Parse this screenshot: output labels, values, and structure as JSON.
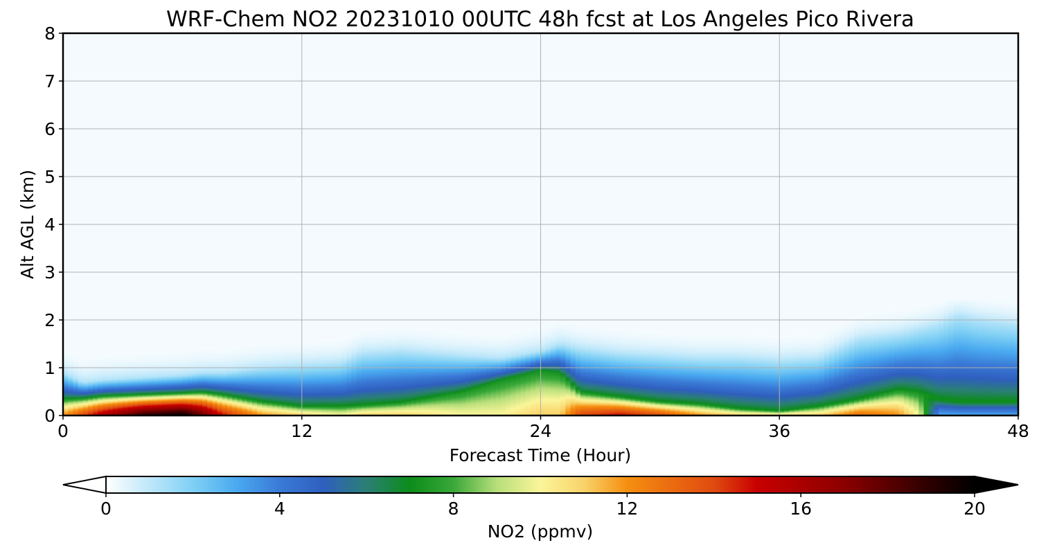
{
  "chart_data": {
    "type": "heatmap",
    "title": "WRF-Chem NO2  20231010 00UTC 48h fcst at Los Angeles Pico Rivera",
    "xlabel": "Forecast Time (Hour)",
    "ylabel": "Alt AGL (km)",
    "xlim": [
      0,
      48
    ],
    "ylim": [
      0,
      8
    ],
    "x_ticks": [
      "0",
      "12",
      "24",
      "36",
      "48"
    ],
    "x_tick_values": [
      0,
      12,
      24,
      36,
      48
    ],
    "y_ticks": [
      "0",
      "1",
      "2",
      "3",
      "4",
      "5",
      "6",
      "7",
      "8"
    ],
    "y_tick_values": [
      0,
      1,
      2,
      3,
      4,
      5,
      6,
      7,
      8
    ],
    "grid": true,
    "colorbar": {
      "label": "NO2  (ppmv)",
      "min": 0,
      "max": 20,
      "ticks": [
        "0",
        "4",
        "8",
        "12",
        "16",
        "20"
      ],
      "tick_values": [
        0,
        4,
        8,
        12,
        16,
        20
      ],
      "extend": "both",
      "color_stops": [
        [
          0,
          "#ffffff"
        ],
        [
          2,
          "#7fd0f5"
        ],
        [
          3,
          "#4aaaf0"
        ],
        [
          4,
          "#3a7ad6"
        ],
        [
          5,
          "#2f5fbf"
        ],
        [
          6,
          "#2b7f74"
        ],
        [
          7,
          "#0c8c1a"
        ],
        [
          8,
          "#3aa83a"
        ],
        [
          9,
          "#b7df7a"
        ],
        [
          10,
          "#fbf59a"
        ],
        [
          11,
          "#f9d36a"
        ],
        [
          12,
          "#f58f10"
        ],
        [
          14,
          "#e04a10"
        ],
        [
          15,
          "#c80000"
        ],
        [
          17,
          "#8b0000"
        ],
        [
          19,
          "#2a0000"
        ],
        [
          20,
          "#000000"
        ]
      ]
    },
    "hours": [
      0,
      1,
      2,
      4,
      6,
      7,
      8,
      10,
      12,
      14,
      15,
      17,
      20,
      22,
      24,
      25,
      26,
      28,
      30,
      32,
      34,
      36,
      38,
      40,
      42,
      43,
      44,
      45,
      46,
      48
    ],
    "field_description": "near-surface NO2 concentration by forecast hour; surface values and plume depth",
    "surface_no2": [
      12,
      14,
      16,
      19,
      20,
      18,
      15,
      12,
      11,
      10,
      11,
      11,
      10,
      10,
      11,
      11,
      14,
      15,
      14,
      12,
      11,
      11,
      11,
      13,
      12,
      10,
      3,
      3,
      3,
      3
    ],
    "mixing_depth_km": [
      0.35,
      0.37,
      0.42,
      0.45,
      0.48,
      0.5,
      0.45,
      0.3,
      0.2,
      0.2,
      0.22,
      0.28,
      0.5,
      0.75,
      0.95,
      0.9,
      0.5,
      0.4,
      0.3,
      0.25,
      0.15,
      0.1,
      0.2,
      0.35,
      0.55,
      0.5,
      0.35,
      0.3,
      0.3,
      0.3
    ],
    "plume_top_km": [
      0.9,
      0.7,
      0.75,
      0.8,
      0.85,
      0.9,
      0.9,
      1.0,
      1.05,
      1.1,
      1.3,
      1.35,
      1.25,
      1.2,
      1.35,
      1.5,
      1.4,
      1.3,
      1.25,
      1.2,
      1.2,
      1.15,
      1.2,
      1.6,
      1.7,
      1.8,
      1.9,
      2.1,
      2.0,
      1.9
    ]
  }
}
